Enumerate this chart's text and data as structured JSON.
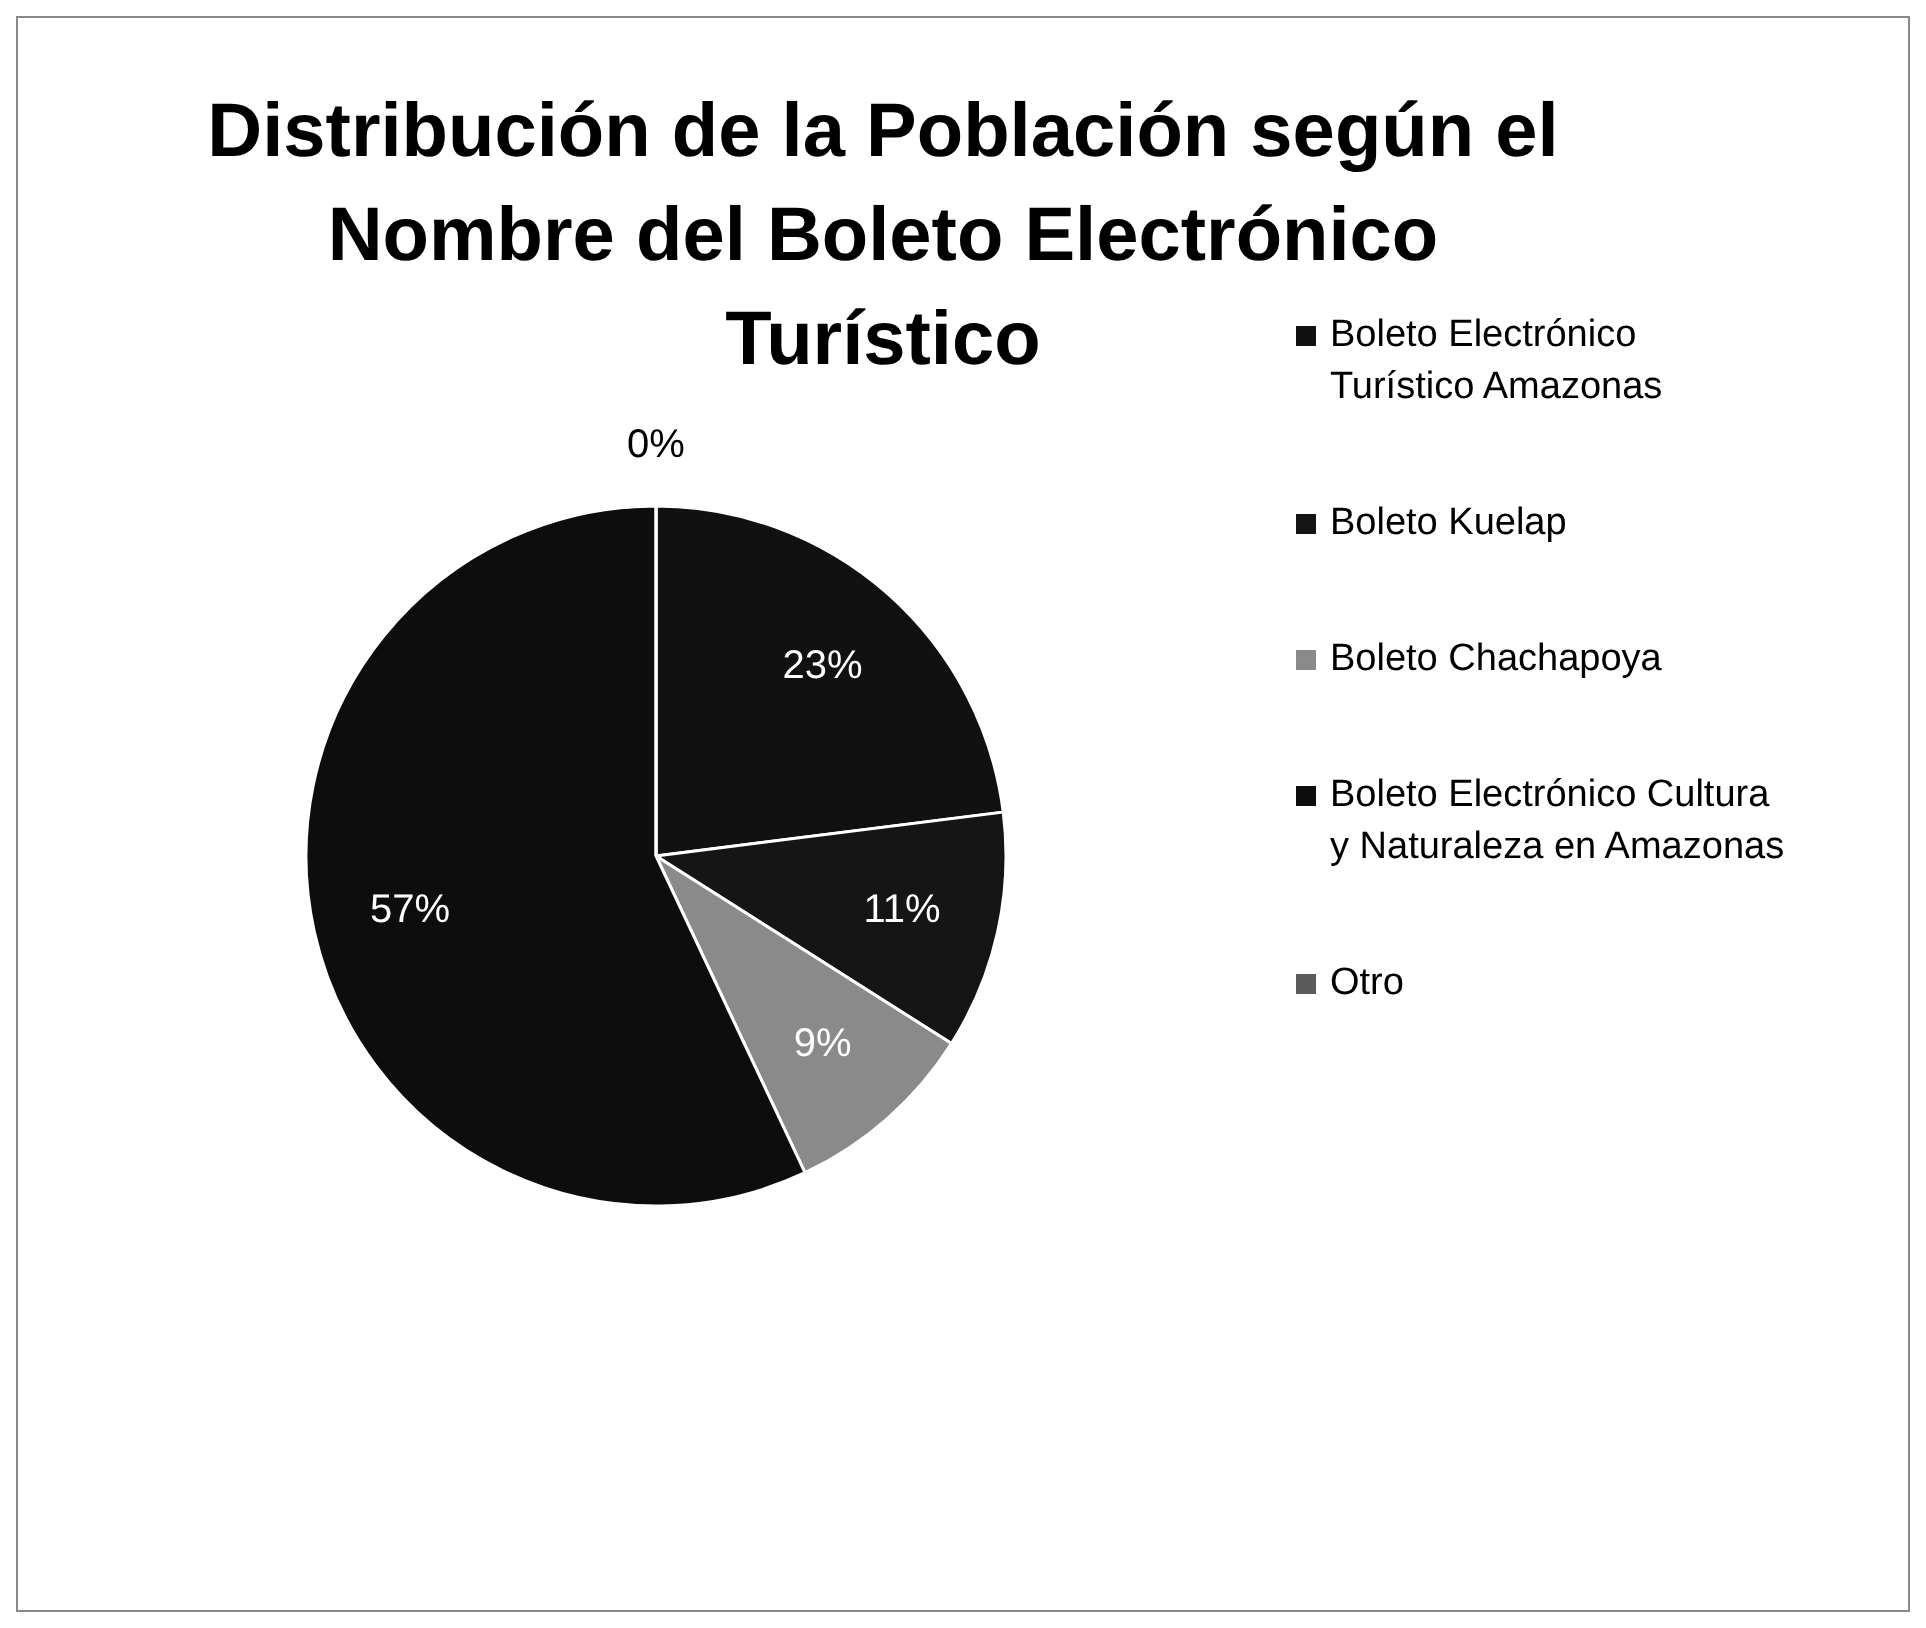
{
  "chart_data": {
    "type": "pie",
    "title": "Distribución de la Población según el Nombre del Boleto Electrónico Turístico",
    "categories": [
      "Boleto Electrónico Turístico Amazonas",
      "Boleto Kuelap",
      "Boleto Chachapoya",
      "Boleto Electrónico Cultura y Naturaleza en Amazonas",
      "Otro"
    ],
    "values": [
      23,
      11,
      9,
      57,
      0
    ],
    "colors": [
      "#111111",
      "#151515",
      "#8a8a8a",
      "#0d0d0d",
      "#5a5a5a"
    ],
    "value_labels": [
      "23%",
      "11%",
      "9%",
      "57%",
      "0%"
    ],
    "legend": "right"
  }
}
